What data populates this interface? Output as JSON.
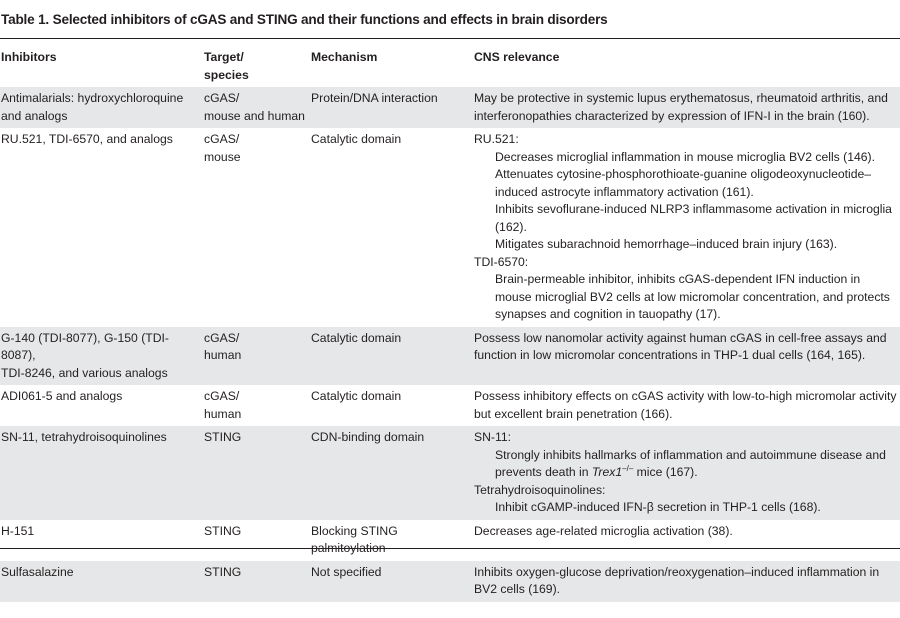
{
  "title": "Table 1. Selected inhibitors of cGAS and STING and their functions and effects in brain disorders",
  "headers": {
    "inhibitors": "Inhibitors",
    "target_line1": "Target/",
    "target_line2": "species",
    "mechanism": "Mechanism",
    "cns": "CNS relevance"
  },
  "rows": [
    {
      "inhibitors": [
        "Antimalarials: hydroxychloroquine",
        "and analogs"
      ],
      "target": [
        "cGAS/",
        "mouse and human"
      ],
      "mechanism": "Protein/DNA interaction",
      "cns_text": "May be protective in systemic lupus erythematosus, rheumatoid arthritis, and interferonopathies characterized by expression of IFN-I in the brain (160)."
    },
    {
      "inhibitors": [
        "RU.521, TDI-6570, and analogs"
      ],
      "target": [
        "cGAS/",
        "mouse"
      ],
      "mechanism": "Catalytic domain",
      "cns_groups": [
        {
          "heading": "RU.521:",
          "items": [
            "Decreases microglial inflammation in mouse microglia BV2 cells (146).",
            "Attenuates cytosine-phosphorothioate-guanine oligodeoxynucleotide–induced astrocyte inflammatory activation (161).",
            "Inhibits sevoflurane-induced NLRP3 inflammasome activation in microglia (162).",
            "Mitigates subarachnoid hemorrhage–induced brain injury (163)."
          ]
        },
        {
          "heading": "TDI-6570:",
          "items": [
            "Brain-permeable inhibitor, inhibits cGAS-dependent IFN induction in mouse microglial BV2 cells at low micromolar concentration, and protects synapses and cognition in tauopathy (17)."
          ]
        }
      ]
    },
    {
      "inhibitors": [
        "G-140 (TDI-8077), G-150 (TDI-8087),",
        "TDI-8246, and various analogs"
      ],
      "target": [
        "cGAS/",
        "human"
      ],
      "mechanism": "Catalytic domain",
      "cns_text": "Possess low nanomolar activity against human cGAS in cell-free assays and function in low micromolar concentrations in THP-1 dual cells (164, 165)."
    },
    {
      "inhibitors": [
        "ADI061-5 and analogs"
      ],
      "target": [
        "cGAS/",
        "human"
      ],
      "mechanism": "Catalytic domain",
      "cns_text": "Possess inhibitory effects on cGAS activity with low-to-high micromolar activity but excellent brain penetration (166)."
    },
    {
      "inhibitors": [
        "SN-11, tetrahydroisoquinolines"
      ],
      "target": [
        "STING"
      ],
      "mechanism": "CDN-binding domain",
      "cns_groups": [
        {
          "heading": "SN-11:",
          "items": [
            "Strongly inhibits hallmarks of inflammation and autoimmune disease and prevents death in "
          ],
          "trex_italic": "Trex1",
          "trex_sup": "–/–",
          "trex_tail": " mice (167)."
        },
        {
          "heading": "Tetrahydroisoquinolines:",
          "items": [
            "Inhibit cGAMP-induced IFN-β secretion in THP-1 cells (168)."
          ]
        }
      ]
    },
    {
      "inhibitors": [
        "H-151"
      ],
      "target": [
        "STING"
      ],
      "mechanism": "Blocking STING palmitoylation",
      "cns_text": "Decreases age-related microglia activation (38)."
    },
    {
      "inhibitors": [
        "Sulfasalazine"
      ],
      "target": [
        "STING"
      ],
      "mechanism": "Not specified",
      "cns_text": "Inhibits oxygen-glucose deprivation/reoxygenation–induced inflammation in BV2 cells (169)."
    }
  ]
}
